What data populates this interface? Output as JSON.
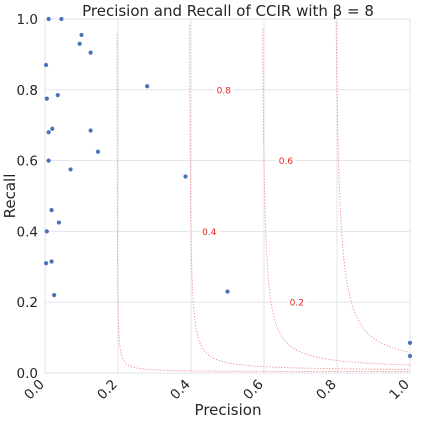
{
  "chart_data": {
    "type": "scatter",
    "title": "Precision and Recall of CCIR with β = 8",
    "xlabel": "Precision",
    "ylabel": "Recall",
    "xlim": [
      0.0,
      1.0
    ],
    "ylim": [
      0.0,
      1.0
    ],
    "x_ticks": [
      "0.0",
      "0.2",
      "0.4",
      "0.6",
      "0.8",
      "1.0"
    ],
    "y_ticks": [
      "0.0",
      "0.2",
      "0.4",
      "0.6",
      "0.8",
      "1.0"
    ],
    "grid": true,
    "point_color": "#4a72b8",
    "curve_color": "#f08080",
    "curve_label_color": "#e8231e",
    "beta": 8,
    "iso_f_curves": [
      {
        "f": 0.2,
        "label": "0.2",
        "label_at": [
          0.69,
          0.2
        ]
      },
      {
        "f": 0.4,
        "label": "0.4",
        "label_at": [
          0.45,
          0.4
        ]
      },
      {
        "f": 0.6,
        "label": "0.6",
        "label_at": [
          0.66,
          0.6
        ]
      },
      {
        "f": 0.8,
        "label": "0.8",
        "label_at": [
          0.49,
          0.8
        ]
      }
    ],
    "points": [
      {
        "x": 0.01,
        "y": 1.0
      },
      {
        "x": 0.045,
        "y": 1.0
      },
      {
        "x": 0.1,
        "y": 0.955
      },
      {
        "x": 0.095,
        "y": 0.93
      },
      {
        "x": 0.125,
        "y": 0.905
      },
      {
        "x": 0.003,
        "y": 0.87
      },
      {
        "x": 0.28,
        "y": 0.81
      },
      {
        "x": 0.035,
        "y": 0.785
      },
      {
        "x": 0.005,
        "y": 0.775
      },
      {
        "x": 0.02,
        "y": 0.69
      },
      {
        "x": 0.125,
        "y": 0.685
      },
      {
        "x": 0.01,
        "y": 0.68
      },
      {
        "x": 0.145,
        "y": 0.625
      },
      {
        "x": 0.01,
        "y": 0.6
      },
      {
        "x": 0.07,
        "y": 0.575
      },
      {
        "x": 0.385,
        "y": 0.555
      },
      {
        "x": 0.018,
        "y": 0.46
      },
      {
        "x": 0.038,
        "y": 0.425
      },
      {
        "x": 0.005,
        "y": 0.4
      },
      {
        "x": 0.018,
        "y": 0.315
      },
      {
        "x": 0.003,
        "y": 0.31
      },
      {
        "x": 0.5,
        "y": 0.23
      },
      {
        "x": 0.025,
        "y": 0.22
      },
      {
        "x": 1.0,
        "y": 0.085
      },
      {
        "x": 1.0,
        "y": 0.048
      }
    ]
  }
}
